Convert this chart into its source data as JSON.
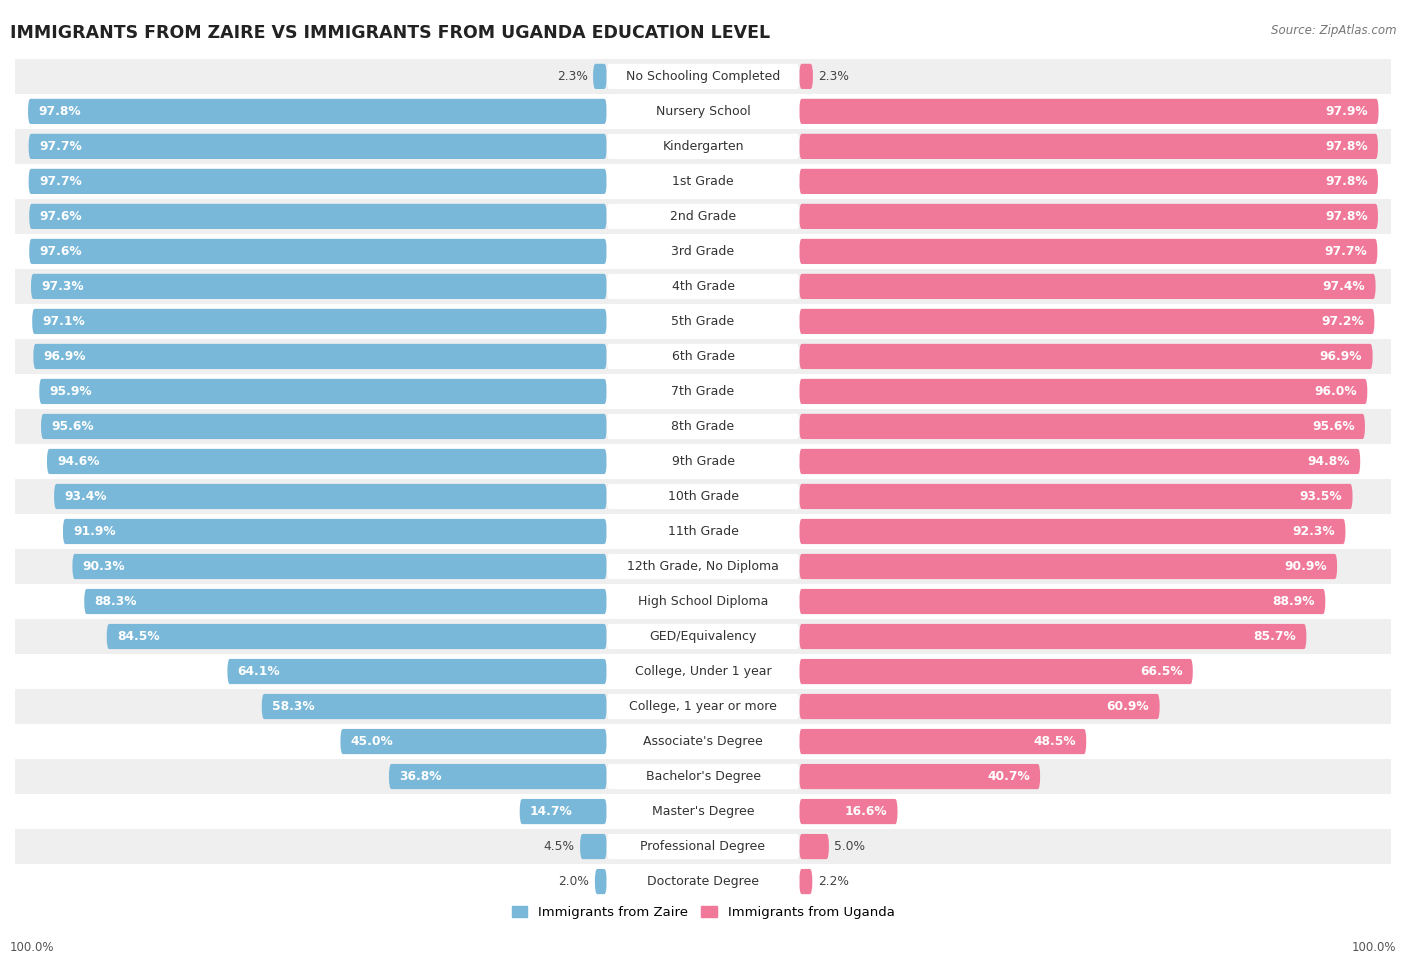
{
  "title": "IMMIGRANTS FROM ZAIRE VS IMMIGRANTS FROM UGANDA EDUCATION LEVEL",
  "source": "Source: ZipAtlas.com",
  "categories": [
    "No Schooling Completed",
    "Nursery School",
    "Kindergarten",
    "1st Grade",
    "2nd Grade",
    "3rd Grade",
    "4th Grade",
    "5th Grade",
    "6th Grade",
    "7th Grade",
    "8th Grade",
    "9th Grade",
    "10th Grade",
    "11th Grade",
    "12th Grade, No Diploma",
    "High School Diploma",
    "GED/Equivalency",
    "College, Under 1 year",
    "College, 1 year or more",
    "Associate's Degree",
    "Bachelor's Degree",
    "Master's Degree",
    "Professional Degree",
    "Doctorate Degree"
  ],
  "zaire": [
    2.3,
    97.8,
    97.7,
    97.7,
    97.6,
    97.6,
    97.3,
    97.1,
    96.9,
    95.9,
    95.6,
    94.6,
    93.4,
    91.9,
    90.3,
    88.3,
    84.5,
    64.1,
    58.3,
    45.0,
    36.8,
    14.7,
    4.5,
    2.0
  ],
  "uganda": [
    2.3,
    97.9,
    97.8,
    97.8,
    97.8,
    97.7,
    97.4,
    97.2,
    96.9,
    96.0,
    95.6,
    94.8,
    93.5,
    92.3,
    90.9,
    88.9,
    85.7,
    66.5,
    60.9,
    48.5,
    40.7,
    16.6,
    5.0,
    2.2
  ],
  "zaire_color": "#7ab8d9",
  "uganda_color": "#f07898",
  "row_bg_odd": "#efefef",
  "row_bg_even": "#ffffff",
  "label_fontsize": 9.0,
  "value_fontsize": 8.8,
  "title_fontsize": 12.5,
  "legend_label_zaire": "Immigrants from Zaire",
  "legend_label_uganda": "Immigrants from Uganda",
  "axis_label_left": "100.0%",
  "axis_label_right": "100.0%"
}
